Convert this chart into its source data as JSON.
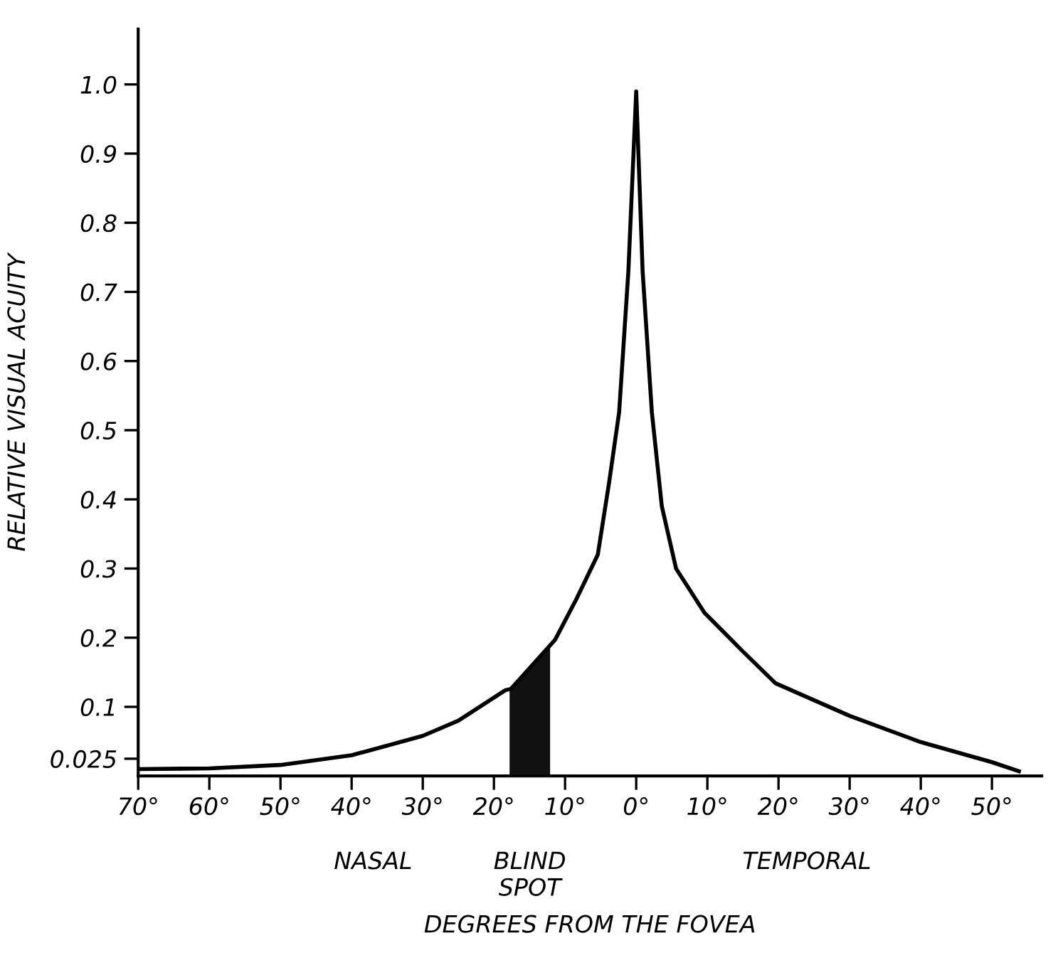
{
  "chart_data": {
    "type": "line",
    "xlabel": "DEGREES FROM THE FOVEA",
    "ylabel": "RELATIVE VISUAL ACUITY",
    "series": [
      {
        "color": "#000000",
        "x": [
          -70,
          -60,
          -50,
          -40,
          -30,
          -25,
          -18.4,
          -17.6,
          -11.4,
          -8.4,
          -5.4,
          -3.8,
          -2.4,
          -1.1,
          0,
          0.9,
          2.2,
          3.6,
          5.6,
          9.6,
          15,
          19.6,
          30,
          40,
          50,
          53.8
        ],
        "values": [
          0.01,
          0.011,
          0.016,
          0.03,
          0.058,
          0.08,
          0.124,
          0.126,
          0.197,
          0.256,
          0.32,
          0.425,
          0.526,
          0.73,
          0.99,
          0.73,
          0.526,
          0.39,
          0.3,
          0.236,
          0.18,
          0.134,
          0.087,
          0.049,
          0.02,
          0.007
        ]
      }
    ],
    "bands": [
      {
        "axis": "x",
        "from": -17.8,
        "to": -12.1,
        "label": "BLIND\nSPOT",
        "color": "#111111"
      }
    ],
    "annotations": [
      "NASAL",
      "TEMPORAL"
    ],
    "xlim": [
      -70,
      57
    ],
    "ylim": [
      0,
      1.08
    ],
    "xticks": [
      {
        "value": -70,
        "label": "70°"
      },
      {
        "value": -60,
        "label": "60°"
      },
      {
        "value": -50,
        "label": "50°"
      },
      {
        "value": -40,
        "label": "40°"
      },
      {
        "value": -30,
        "label": "30°"
      },
      {
        "value": -20,
        "label": "20°"
      },
      {
        "value": -10,
        "label": "10°"
      },
      {
        "value": 0,
        "label": "0°"
      },
      {
        "value": 10,
        "label": "10°"
      },
      {
        "value": 20,
        "label": "20°"
      },
      {
        "value": 30,
        "label": "30°"
      },
      {
        "value": 40,
        "label": "40°"
      },
      {
        "value": 50,
        "label": "50°"
      }
    ],
    "yticks": [
      0.025,
      0.1,
      0.2,
      0.3,
      0.4,
      0.5,
      0.6,
      0.7,
      0.8,
      0.9,
      {
        "value": 1.0,
        "label": "1.0"
      }
    ],
    "grid": false,
    "legend": false,
    "marker": "none",
    "line_style": "solid"
  }
}
